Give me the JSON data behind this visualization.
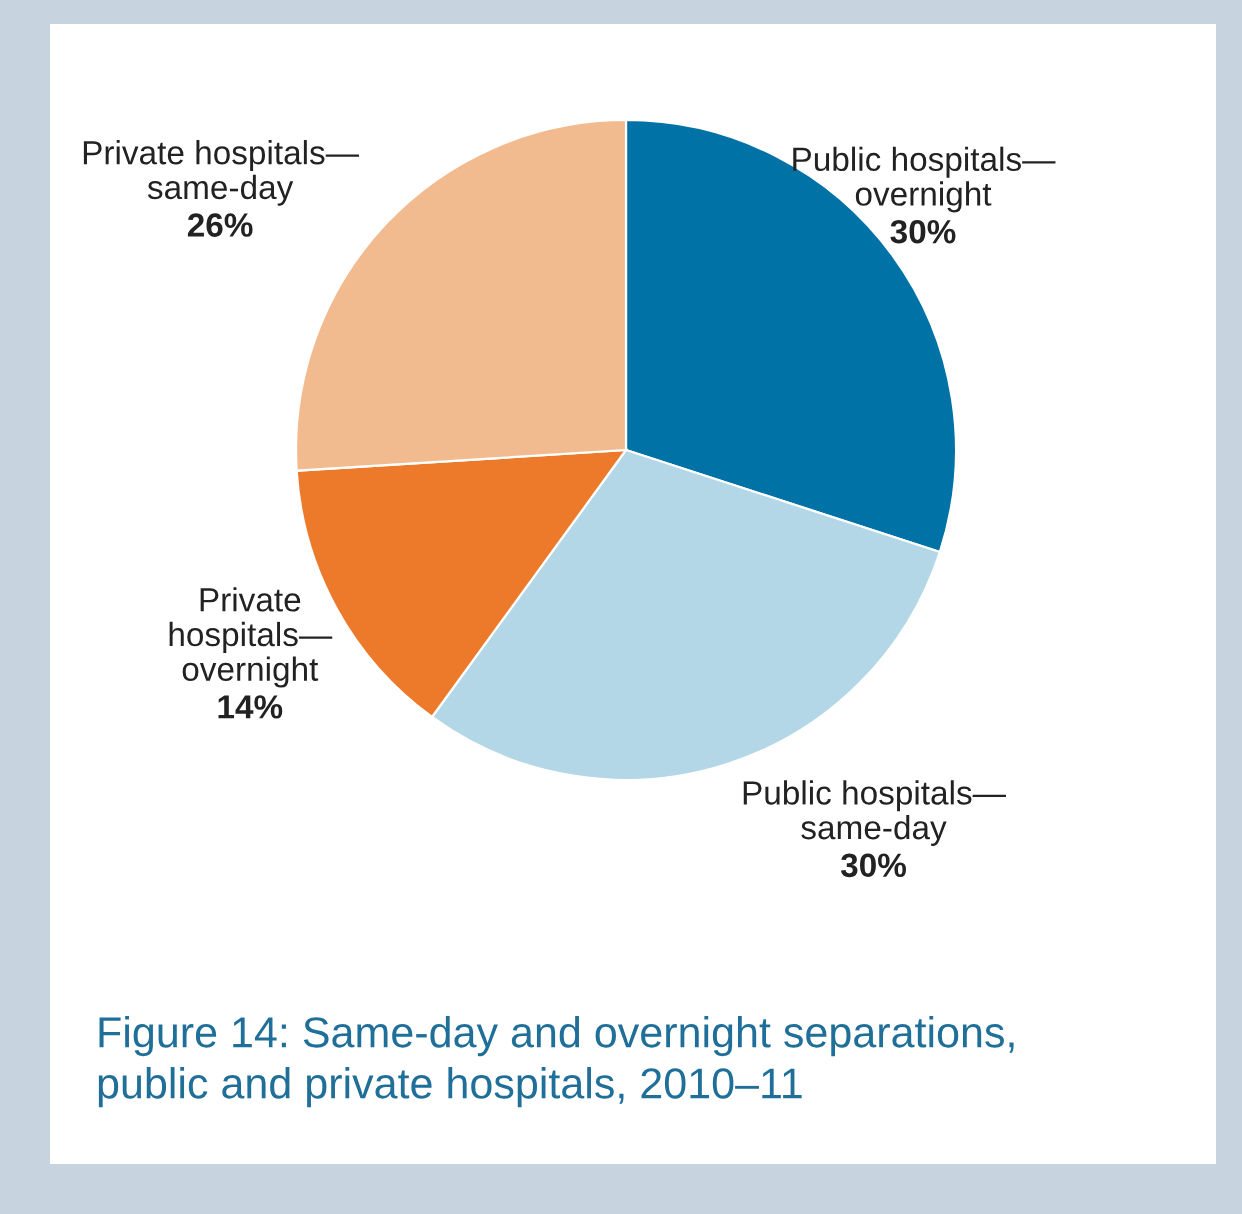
{
  "chart_data": {
    "type": "pie",
    "title": "Figure 14: Same-day and overnight separations,\npublic and private hospitals, 2010–11",
    "categories": [
      "Public hospitals—\novernight",
      "Public hospitals—\nsame-day",
      "Private\nhospitals—\novernight",
      "Private hospitals—\nsame-day"
    ],
    "values": [
      30,
      30,
      14,
      26
    ],
    "value_labels": [
      "30%",
      "30%",
      "14%",
      "26%"
    ],
    "colors": [
      "#0072a6",
      "#b3d7e6",
      "#ec7a2a",
      "#f2bb8f"
    ],
    "legend": false
  }
}
